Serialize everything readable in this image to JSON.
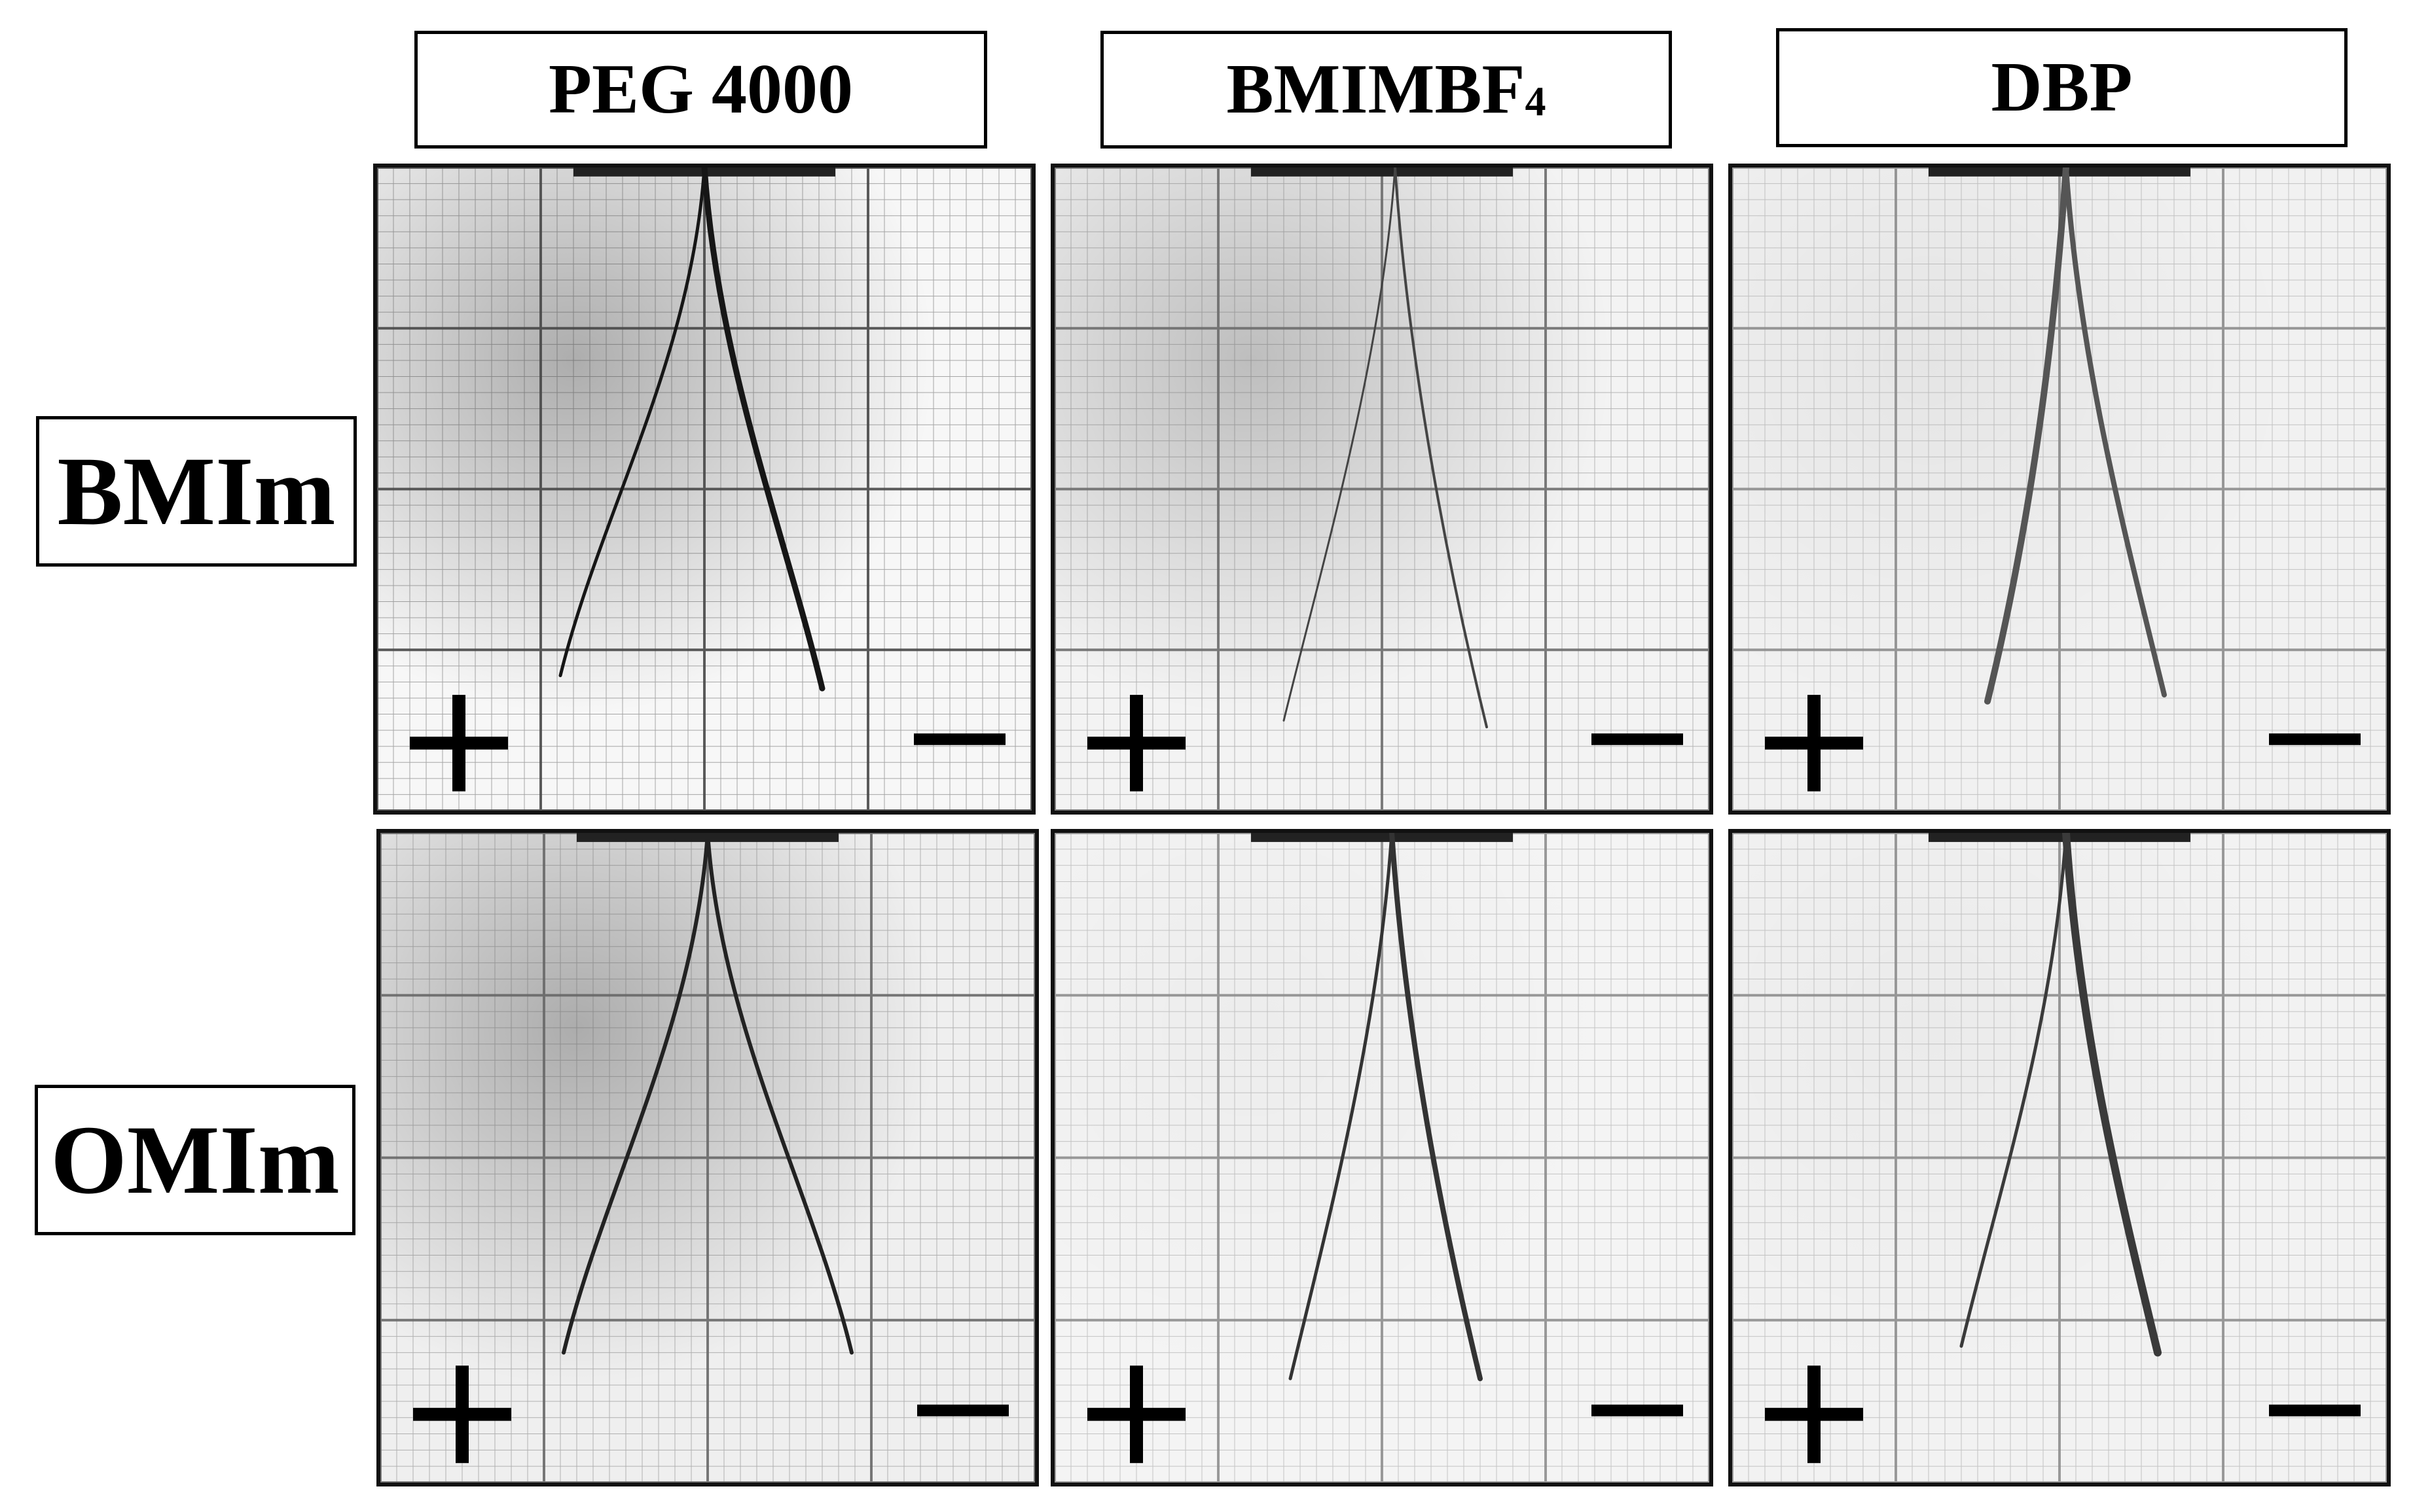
{
  "columns": [
    {
      "label": "PEG 4000",
      "sub": ""
    },
    {
      "label": "BMIMBF",
      "sub": "4"
    },
    {
      "label": "DBP",
      "sub": ""
    }
  ],
  "rows": [
    {
      "label": "BMIm"
    },
    {
      "label": "OMIm"
    }
  ],
  "signs": {
    "anode": "+",
    "cathode": "−"
  },
  "panels": [
    {
      "row": 0,
      "col": 0,
      "paper": "#f7f7f7",
      "grid": "#444444",
      "strip": "#161616",
      "shade": 0.3
    },
    {
      "row": 0,
      "col": 1,
      "paper": "#f3f3f3",
      "grid": "#6a6a6a",
      "strip": "#444444",
      "shade": 0.22
    },
    {
      "row": 0,
      "col": 2,
      "paper": "#f1f1f1",
      "grid": "#8a8a8a",
      "strip": "#555555",
      "shade": 0.05
    },
    {
      "row": 1,
      "col": 0,
      "paper": "#efefef",
      "grid": "#666666",
      "strip": "#222222",
      "shade": 0.28
    },
    {
      "row": 1,
      "col": 1,
      "paper": "#f4f4f4",
      "grid": "#8c8c8c",
      "strip": "#333333",
      "shade": 0.03
    },
    {
      "row": 1,
      "col": 2,
      "paper": "#f2f2f2",
      "grid": "#8c8c8c",
      "strip": "#3a3a3a",
      "shade": 0.03
    }
  ]
}
